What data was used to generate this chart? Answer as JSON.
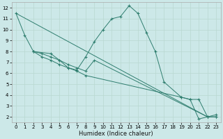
{
  "xlabel": "Humidex (Indice chaleur)",
  "bg_color": "#cce8e8",
  "line_color": "#2e7d6e",
  "grid_color_major": "#b8d8d0",
  "grid_color_minor": "#d0e8e0",
  "xlim": [
    -0.5,
    23.5
  ],
  "ylim": [
    1.5,
    12.5
  ],
  "xticks": [
    0,
    1,
    2,
    3,
    4,
    5,
    6,
    7,
    8,
    9,
    10,
    11,
    12,
    13,
    14,
    15,
    16,
    17,
    18,
    19,
    20,
    21,
    22,
    23
  ],
  "yticks": [
    2,
    3,
    4,
    5,
    6,
    7,
    8,
    9,
    10,
    11,
    12
  ],
  "series": [
    {
      "x": [
        0,
        1,
        2,
        4,
        5,
        6,
        7,
        8,
        9,
        10,
        11,
        12,
        13,
        14,
        15,
        16,
        17,
        19,
        20,
        21,
        22,
        23
      ],
      "y": [
        11.5,
        9.5,
        8.0,
        7.8,
        7.2,
        6.5,
        6.3,
        7.5,
        8.9,
        10.0,
        11.0,
        11.2,
        12.2,
        11.5,
        9.7,
        8.0,
        5.2,
        3.8,
        3.6,
        1.8,
        2.0,
        2.0
      ],
      "markers": true
    },
    {
      "x": [
        0,
        22
      ],
      "y": [
        11.5,
        2.0
      ],
      "markers": false
    },
    {
      "x": [
        2,
        3,
        4,
        5,
        6,
        7,
        8,
        9,
        22,
        23
      ],
      "y": [
        8.0,
        7.8,
        7.5,
        7.2,
        6.8,
        6.5,
        6.2,
        7.2,
        2.0,
        2.2
      ],
      "markers": true
    },
    {
      "x": [
        2,
        3,
        4,
        5,
        6,
        7,
        8,
        19,
        20,
        21,
        22,
        23
      ],
      "y": [
        8.0,
        7.5,
        7.2,
        6.8,
        6.5,
        6.2,
        5.8,
        3.8,
        3.6,
        3.6,
        2.0,
        2.0
      ],
      "markers": true
    }
  ]
}
